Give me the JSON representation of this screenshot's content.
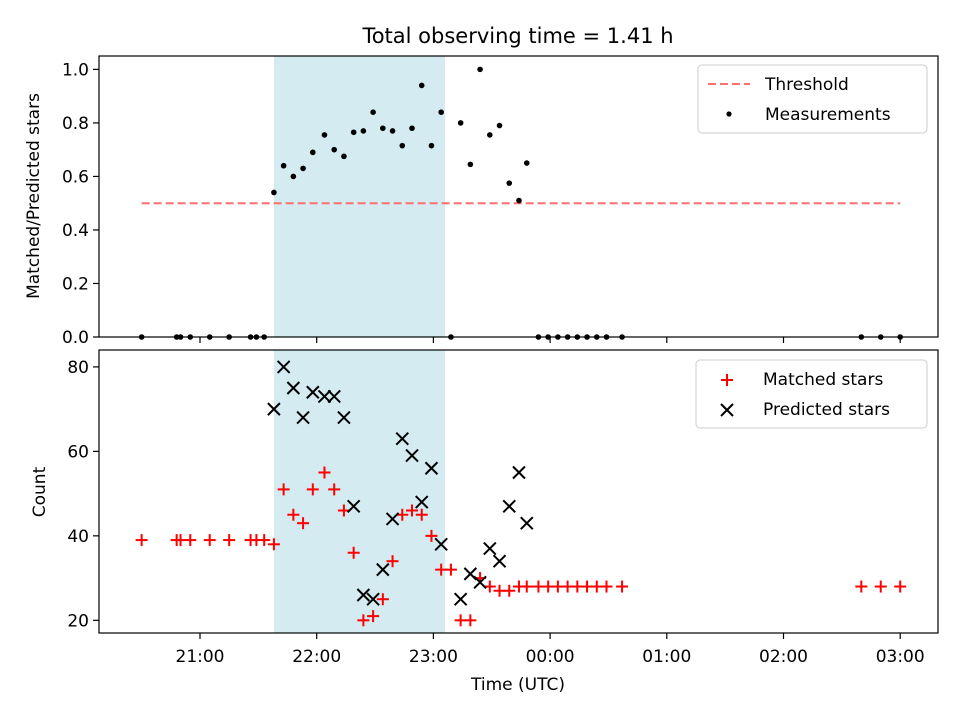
{
  "chart_data": [
    {
      "type": "scatter",
      "title": "Total observing time = 1.41 h",
      "xlabel": "",
      "ylabel": "Matched/Predicted stars",
      "ylim": [
        0,
        1.05
      ],
      "yticks": [
        0.0,
        0.2,
        0.4,
        0.6,
        0.8,
        1.0
      ],
      "ytick_labels": [
        "0.0",
        "0.2",
        "0.4",
        "0.6",
        "0.8",
        "1.0"
      ],
      "legend_position": "top-right",
      "shaded_interval": [
        "21:38",
        "23:06"
      ],
      "shade_color": "#d4ebf1",
      "threshold": {
        "name": "Threshold",
        "value": 0.5,
        "x_start": "20:30",
        "x_end": "03:00",
        "color": "#ff6f6f"
      },
      "series": [
        {
          "name": "Measurements",
          "color": "#000000",
          "points": [
            [
              "20:30",
              0.0
            ],
            [
              "20:48",
              0.0
            ],
            [
              "20:50",
              0.0
            ],
            [
              "20:55",
              0.0
            ],
            [
              "21:05",
              0.0
            ],
            [
              "21:15",
              0.0
            ],
            [
              "21:26",
              0.0
            ],
            [
              "21:29",
              0.0
            ],
            [
              "21:33",
              0.0
            ],
            [
              "21:38",
              0.54
            ],
            [
              "21:43",
              0.64
            ],
            [
              "21:48",
              0.6
            ],
            [
              "21:53",
              0.63
            ],
            [
              "21:58",
              0.69
            ],
            [
              "22:04",
              0.755
            ],
            [
              "22:09",
              0.7
            ],
            [
              "22:14",
              0.675
            ],
            [
              "22:19",
              0.765
            ],
            [
              "22:24",
              0.77
            ],
            [
              "22:29",
              0.84
            ],
            [
              "22:34",
              0.78
            ],
            [
              "22:39",
              0.77
            ],
            [
              "22:44",
              0.715
            ],
            [
              "22:49",
              0.78
            ],
            [
              "22:54",
              0.94
            ],
            [
              "22:59",
              0.715
            ],
            [
              "23:04",
              0.84
            ],
            [
              "23:09",
              0.0
            ],
            [
              "23:14",
              0.8
            ],
            [
              "23:19",
              0.645
            ],
            [
              "23:24",
              1.0
            ],
            [
              "23:29",
              0.755
            ],
            [
              "23:34",
              0.79
            ],
            [
              "23:39",
              0.575
            ],
            [
              "23:44",
              0.51
            ],
            [
              "23:48",
              0.65
            ],
            [
              "23:54",
              0.0
            ],
            [
              "23:59",
              0.0
            ],
            [
              "00:04",
              0.0
            ],
            [
              "00:09",
              0.0
            ],
            [
              "00:14",
              0.0
            ],
            [
              "00:19",
              0.0
            ],
            [
              "00:24",
              0.0
            ],
            [
              "00:29",
              0.0
            ],
            [
              "00:37",
              0.0
            ],
            [
              "02:40",
              0.0
            ],
            [
              "02:50",
              0.0
            ],
            [
              "03:00",
              0.0
            ]
          ]
        }
      ]
    },
    {
      "type": "scatter",
      "title": "",
      "xlabel": "Time (UTC)",
      "ylabel": "Count",
      "ylim": [
        17,
        84
      ],
      "yticks": [
        20,
        40,
        60,
        80
      ],
      "ytick_labels": [
        "20",
        "40",
        "60",
        "80"
      ],
      "xticks": [
        "21:00",
        "22:00",
        "23:00",
        "00:00",
        "01:00",
        "02:00",
        "03:00"
      ],
      "legend_position": "top-right",
      "shaded_interval": [
        "21:38",
        "23:06"
      ],
      "shade_color": "#d4ebf1",
      "series": [
        {
          "name": "Matched stars",
          "marker": "+",
          "color": "#ff0000",
          "points": [
            [
              "20:30",
              39
            ],
            [
              "20:48",
              39
            ],
            [
              "20:50",
              39
            ],
            [
              "20:55",
              39
            ],
            [
              "21:05",
              39
            ],
            [
              "21:15",
              39
            ],
            [
              "21:26",
              39
            ],
            [
              "21:29",
              39
            ],
            [
              "21:33",
              39
            ],
            [
              "21:38",
              38
            ],
            [
              "21:43",
              51
            ],
            [
              "21:48",
              45
            ],
            [
              "21:53",
              43
            ],
            [
              "21:58",
              51
            ],
            [
              "22:04",
              55
            ],
            [
              "22:09",
              51
            ],
            [
              "22:14",
              46
            ],
            [
              "22:19",
              36
            ],
            [
              "22:24",
              20
            ],
            [
              "22:29",
              21
            ],
            [
              "22:34",
              25
            ],
            [
              "22:39",
              34
            ],
            [
              "22:44",
              45
            ],
            [
              "22:49",
              46
            ],
            [
              "22:54",
              45
            ],
            [
              "22:59",
              40
            ],
            [
              "23:04",
              32
            ],
            [
              "23:09",
              32
            ],
            [
              "23:14",
              20
            ],
            [
              "23:19",
              20
            ],
            [
              "23:24",
              30
            ],
            [
              "23:29",
              28
            ],
            [
              "23:34",
              27
            ],
            [
              "23:39",
              27
            ],
            [
              "23:44",
              28
            ],
            [
              "23:48",
              28
            ],
            [
              "23:54",
              28
            ],
            [
              "23:59",
              28
            ],
            [
              "00:04",
              28
            ],
            [
              "00:09",
              28
            ],
            [
              "00:14",
              28
            ],
            [
              "00:19",
              28
            ],
            [
              "00:24",
              28
            ],
            [
              "00:29",
              28
            ],
            [
              "00:37",
              28
            ],
            [
              "02:40",
              28
            ],
            [
              "02:50",
              28
            ],
            [
              "03:00",
              28
            ]
          ]
        },
        {
          "name": "Predicted stars",
          "marker": "x",
          "color": "#000000",
          "points": [
            [
              "21:38",
              70
            ],
            [
              "21:43",
              80
            ],
            [
              "21:48",
              75
            ],
            [
              "21:53",
              68
            ],
            [
              "21:58",
              74
            ],
            [
              "22:04",
              73
            ],
            [
              "22:09",
              73
            ],
            [
              "22:14",
              68
            ],
            [
              "22:19",
              47
            ],
            [
              "22:24",
              26
            ],
            [
              "22:29",
              25
            ],
            [
              "22:34",
              32
            ],
            [
              "22:39",
              44
            ],
            [
              "22:44",
              63
            ],
            [
              "22:49",
              59
            ],
            [
              "22:54",
              48
            ],
            [
              "22:59",
              56
            ],
            [
              "23:04",
              38
            ],
            [
              "23:14",
              25
            ],
            [
              "23:19",
              31
            ],
            [
              "23:24",
              29
            ],
            [
              "23:29",
              37
            ],
            [
              "23:34",
              34
            ],
            [
              "23:39",
              47
            ],
            [
              "23:44",
              55
            ],
            [
              "23:48",
              43
            ]
          ]
        }
      ]
    }
  ]
}
